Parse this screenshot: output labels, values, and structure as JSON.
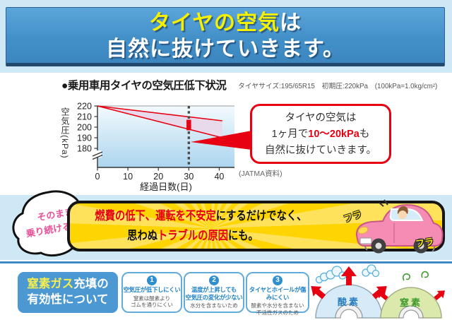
{
  "header": {
    "title_highlight": "タイヤの空気",
    "title_tail": "は",
    "title_line2": "自然に抜けていきます。"
  },
  "section": {
    "title": "●乗用車用タイヤの空気圧低下状況",
    "meta": "タイヤサイズ:195/65R15　初期圧:220kPa　(100kPa=1.0kg/cm²)"
  },
  "chart_data": {
    "type": "area",
    "title": "乗用車用タイヤの空気圧低下状況",
    "xlabel": "経過日数(日)",
    "ylabel": "空気圧(kPa)",
    "x_ticks": [
      0,
      10,
      20,
      30,
      40
    ],
    "y_ticks": [
      220,
      210,
      200,
      190,
      180
    ],
    "xlim": [
      0,
      45
    ],
    "ylim": [
      180,
      220
    ],
    "axis_break_below": 180,
    "grid": false,
    "band": {
      "x": [
        0,
        41
      ],
      "upper": [
        220,
        206
      ],
      "lower": [
        220,
        190
      ]
    },
    "highlight": {
      "day": 30,
      "range": [
        197,
        207
      ]
    },
    "initial_pressure_kpa": 220,
    "monthly_loss_kpa": [
      10,
      20
    ],
    "source": "(JATMA資料)",
    "accent": "#e60012"
  },
  "callout": {
    "line1": "タイヤの空気は",
    "line2_pre": "1ヶ月で",
    "line2_em": "10〜20kPa",
    "line2_post": "も",
    "line3": "自然に抜けていきます。"
  },
  "bubble": {
    "line1": "そのまま",
    "line2": "乗り続けると…"
  },
  "banner": {
    "l1_red": "燃費の低下、運転を不安定",
    "l1_black": "にするだけでなく、",
    "l2_black1": "思わぬ",
    "l2_red": "トラブルの原因",
    "l2_black2": "にも。",
    "wobble1": "フラ",
    "wobble2": "フラ"
  },
  "bottom": {
    "heading_l1_colored": "窒素ガス",
    "heading_l1_rest": "充填の",
    "heading_l2": "有効性について",
    "cards": [
      {
        "num": "1",
        "title": "空気圧が低下しにくい",
        "desc": "窒素は酸素より\nゴムを通りにくい"
      },
      {
        "num": "2",
        "title": "温度が上昇しても\n空気圧の変化が少ない",
        "desc": "水分を含まないため"
      },
      {
        "num": "3",
        "title": "タイヤとホイールが傷みにくい",
        "desc": "酸素や水分を含まない\n不活性ガスのため"
      }
    ],
    "tires": [
      {
        "label": "酸素"
      },
      {
        "label": "窒素"
      }
    ]
  },
  "colors": {
    "header_blue": "#4390c8",
    "accent_red": "#e60012",
    "banner_yellow": "#ffd800",
    "bubble_pink": "#e85298",
    "nitro_box_blue": "#4b98d2",
    "oxygen_label_blue": "#2a7fc0",
    "nitrogen_label_green": "#3f9a2e",
    "background_light_blue": "#cfe8f5"
  }
}
